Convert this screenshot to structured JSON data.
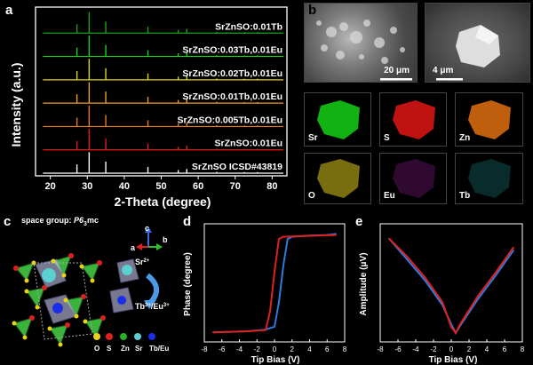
{
  "panels": {
    "a": "a",
    "b": "b",
    "c": "c",
    "d": "d",
    "e": "e"
  },
  "colors": {
    "green": "#19a519",
    "light_green": "#1ed21e",
    "yellow": "#e8d21a",
    "orange": "#f0a020",
    "red": "#e41c1c",
    "white": "#ffffff",
    "blue": "#2c7be0",
    "red_loop": "#e0201c"
  },
  "chart_data": [
    {
      "type": "line",
      "xlabel": "2-Theta (degree)",
      "ylabel": "Intensity (a.u.)",
      "xlim": [
        16,
        84
      ],
      "xticks": [
        20,
        30,
        40,
        50,
        60,
        70,
        80
      ],
      "series": [
        {
          "name": "SrZnSO:0.01Tb",
          "color": "#19a519"
        },
        {
          "name": "SrZnSO:0.03Tb,0.01Eu",
          "color": "#1ed21e"
        },
        {
          "name": "SrZnSO:0.02Tb,0.01Eu",
          "color": "#e8d21a"
        },
        {
          "name": "SrZnSO:0.01Tb,0.01Eu",
          "color": "#f0a020"
        },
        {
          "name": "SrZnSO:0.005Tb,0.01Eu",
          "color": "#e87a1a"
        },
        {
          "name": "SrZnSO:0.01Eu",
          "color": "#e41c1c"
        },
        {
          "name": "SrZnSO ICSD#43819",
          "color": "#ffffff"
        }
      ],
      "peaks": [
        {
          "x": 27.2,
          "h": 0.42
        },
        {
          "x": 30.5,
          "h": 1.0
        },
        {
          "x": 35.0,
          "h": 0.55
        },
        {
          "x": 46.4,
          "h": 0.3
        },
        {
          "x": 54.6,
          "h": 0.15
        },
        {
          "x": 56.9,
          "h": 0.2
        },
        {
          "x": 65.0,
          "h": 0.06
        },
        {
          "x": 72.5,
          "h": 0.05
        },
        {
          "x": 76.0,
          "h": 0.05
        }
      ]
    },
    {
      "type": "line",
      "xlabel": "Tip Bias (V)",
      "ylabel": "Phase (degree)",
      "xlim": [
        -8,
        8
      ],
      "ylim": [
        -115,
        95
      ],
      "xticks": [
        -8,
        -6,
        -4,
        -2,
        0,
        2,
        4,
        6,
        8
      ],
      "series": [
        {
          "color": "#2c7be0",
          "x": [
            -7,
            -5,
            -3,
            -1,
            0,
            0.5,
            1,
            1.5,
            2,
            4,
            6,
            7
          ],
          "y": [
            -98,
            -97,
            -96,
            -93,
            -88,
            -45,
            20,
            68,
            72,
            74,
            75,
            77
          ]
        },
        {
          "color": "#e0201c",
          "x": [
            7,
            5,
            3,
            1,
            0.5,
            0,
            -0.5,
            -1,
            -3,
            -5,
            -7
          ],
          "y": [
            75,
            74,
            73,
            72,
            68,
            10,
            -60,
            -94,
            -96,
            -97,
            -98
          ]
        }
      ]
    },
    {
      "type": "line",
      "xlabel": "Tip Bias (V)",
      "ylabel": "Amplitude (μV)",
      "xlim": [
        -8,
        8
      ],
      "xticks": [
        -8,
        -6,
        -4,
        -2,
        0,
        2,
        4,
        6,
        8
      ],
      "series": [
        {
          "color": "#2c7be0",
          "x": [
            -7,
            -5,
            -3,
            -1,
            0,
            0.5,
            1,
            3,
            5,
            7
          ],
          "y": [
            700,
            560,
            420,
            250,
            120,
            60,
            110,
            290,
            450,
            620
          ]
        },
        {
          "color": "#e0201c",
          "x": [
            7,
            5,
            3,
            1,
            0.5,
            0,
            -1,
            -3,
            -5,
            -7
          ],
          "y": [
            640,
            470,
            310,
            120,
            60,
            100,
            270,
            440,
            580,
            700
          ]
        }
      ]
    }
  ],
  "b": {
    "scale1": "20 μm",
    "scale2": "4 μm",
    "maps": [
      {
        "label": "Sr",
        "color": "#15c515"
      },
      {
        "label": "S",
        "color": "#d61414"
      },
      {
        "label": "Zn",
        "color": "#e07010"
      },
      {
        "label": "O",
        "color": "#c8b81a"
      },
      {
        "label": "Eu",
        "color": "#8a1a8a"
      },
      {
        "label": "Tb",
        "color": "#1a7a7a"
      }
    ]
  },
  "c": {
    "space_group_prefix": "space group: ",
    "space_group_name": "P6",
    "space_group_sub": "3",
    "space_group_suffix": "mc",
    "axes": {
      "c": "c",
      "a": "a",
      "b": "b"
    },
    "sr_label": "Sr",
    "sr_sup": "2+",
    "tb_label": "Tb",
    "tb_sup": "3+",
    "eu_label": "/Eu",
    "eu_sup": "3+",
    "legend": [
      {
        "label": "O",
        "color": "#e8d21a"
      },
      {
        "label": "S",
        "color": "#e02020"
      },
      {
        "label": "Zn",
        "color": "#22b422"
      },
      {
        "label": "Sr",
        "color": "#5ad0d0"
      },
      {
        "label": "Tb/Eu",
        "color": "#1a2ee8"
      }
    ]
  }
}
